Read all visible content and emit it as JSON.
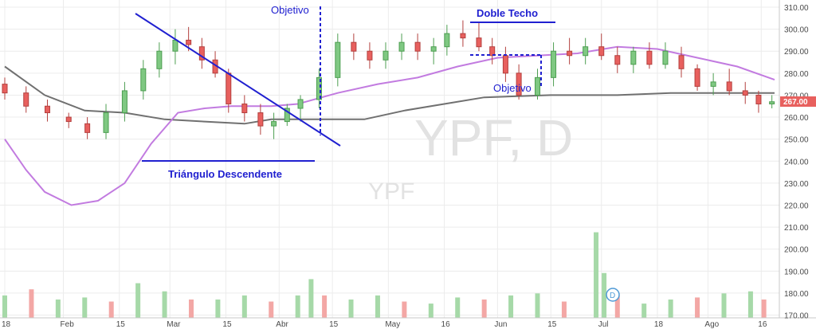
{
  "watermark": {
    "ticker": "YPF, D",
    "name": "YPF"
  },
  "price_label": "267.00",
  "event_marker": "D",
  "chart_data": {
    "type": "candlestick",
    "y_range": [
      165,
      313
    ],
    "y_ticks": [
      "310.00",
      "300.00",
      "290.00",
      "280.00",
      "270.00",
      "260.00",
      "250.00",
      "240.00",
      "230.00",
      "220.00",
      "210.00",
      "200.00",
      "190.00",
      "180.00",
      "170.00"
    ],
    "y_tick_values": [
      310,
      300,
      290,
      280,
      270,
      260,
      250,
      240,
      230,
      220,
      210,
      200,
      190,
      180,
      170
    ],
    "x_ticks": [
      "18",
      "Feb",
      "15",
      "Mar",
      "15",
      "Abr",
      "15",
      "May",
      "16",
      "Jun",
      "15",
      "Jul",
      "18",
      "Ago",
      "16"
    ],
    "x_tick_positions": [
      0,
      22,
      43,
      62,
      83,
      103,
      123,
      144,
      165,
      185,
      205,
      224,
      245,
      264,
      284
    ],
    "last_price": 267,
    "n_sessions": 289,
    "colors": {
      "up": "#7fc882",
      "down": "#e8605e",
      "sma_long": "#707070",
      "sma_short": "#c27be0",
      "annotation": "#2020d0",
      "price_tag": "#e8605e",
      "grid": "#ececec"
    },
    "candles": [
      [
        0,
        275,
        278,
        268,
        271
      ],
      [
        8,
        271,
        274,
        262,
        265
      ],
      [
        16,
        265,
        268,
        258,
        262
      ],
      [
        24,
        260,
        262,
        255,
        258
      ],
      [
        31,
        257,
        260,
        250,
        253
      ],
      [
        38,
        253,
        266,
        250,
        262
      ],
      [
        45,
        262,
        276,
        258,
        272
      ],
      [
        52,
        272,
        286,
        268,
        282
      ],
      [
        58,
        282,
        294,
        278,
        290
      ],
      [
        64,
        290,
        300,
        284,
        295
      ],
      [
        69,
        295,
        301,
        290,
        293
      ],
      [
        74,
        292,
        296,
        282,
        286
      ],
      [
        79,
        286,
        290,
        278,
        280
      ],
      [
        84,
        280,
        282,
        262,
        266
      ],
      [
        90,
        266,
        270,
        258,
        262
      ],
      [
        96,
        262,
        266,
        252,
        256
      ],
      [
        101,
        256,
        262,
        250,
        258
      ],
      [
        106,
        258,
        266,
        256,
        264
      ],
      [
        111,
        264,
        270,
        258,
        268
      ],
      [
        118,
        268,
        282,
        264,
        278
      ],
      [
        125,
        278,
        298,
        274,
        294
      ],
      [
        131,
        294,
        298,
        286,
        290
      ],
      [
        137,
        290,
        294,
        282,
        286
      ],
      [
        143,
        286,
        294,
        282,
        290
      ],
      [
        149,
        290,
        298,
        286,
        294
      ],
      [
        155,
        294,
        298,
        286,
        290
      ],
      [
        161,
        290,
        296,
        284,
        292
      ],
      [
        166,
        292,
        302,
        288,
        298
      ],
      [
        172,
        298,
        304,
        292,
        296
      ],
      [
        178,
        296,
        303,
        290,
        292
      ],
      [
        183,
        292,
        296,
        284,
        288
      ],
      [
        188,
        288,
        292,
        276,
        280
      ],
      [
        193,
        280,
        284,
        268,
        270
      ],
      [
        200,
        270,
        282,
        268,
        278
      ],
      [
        206,
        278,
        294,
        274,
        290
      ],
      [
        212,
        290,
        296,
        284,
        288
      ],
      [
        218,
        288,
        296,
        284,
        292
      ],
      [
        224,
        292,
        298,
        286,
        288
      ],
      [
        230,
        288,
        292,
        280,
        284
      ],
      [
        236,
        284,
        292,
        280,
        290
      ],
      [
        242,
        290,
        294,
        282,
        284
      ],
      [
        248,
        284,
        294,
        282,
        290
      ],
      [
        254,
        288,
        292,
        278,
        282
      ],
      [
        260,
        282,
        284,
        272,
        274
      ],
      [
        266,
        274,
        280,
        270,
        276
      ],
      [
        272,
        276,
        282,
        270,
        272
      ],
      [
        278,
        272,
        276,
        266,
        270
      ],
      [
        283,
        270,
        272,
        262,
        266
      ],
      [
        288,
        266,
        270,
        264,
        267
      ]
    ],
    "volume_range": [
      0,
      215
    ],
    "volume": [
      [
        0,
        55
      ],
      [
        10,
        70
      ],
      [
        20,
        45
      ],
      [
        30,
        50
      ],
      [
        40,
        40
      ],
      [
        50,
        85
      ],
      [
        60,
        65
      ],
      [
        70,
        45
      ],
      [
        80,
        45
      ],
      [
        90,
        55
      ],
      [
        100,
        40
      ],
      [
        110,
        55
      ],
      [
        115,
        95
      ],
      [
        120,
        55
      ],
      [
        130,
        45
      ],
      [
        140,
        55
      ],
      [
        150,
        40
      ],
      [
        160,
        35
      ],
      [
        170,
        50
      ],
      [
        180,
        45
      ],
      [
        190,
        55
      ],
      [
        200,
        60
      ],
      [
        210,
        40
      ],
      [
        222,
        210
      ],
      [
        225,
        110
      ],
      [
        230,
        55
      ],
      [
        240,
        35
      ],
      [
        250,
        45
      ],
      [
        260,
        50
      ],
      [
        270,
        60
      ],
      [
        280,
        65
      ],
      [
        285,
        45
      ]
    ],
    "sma_long": [
      [
        0,
        283
      ],
      [
        15,
        270
      ],
      [
        30,
        263
      ],
      [
        45,
        262
      ],
      [
        60,
        259
      ],
      [
        75,
        258
      ],
      [
        90,
        257
      ],
      [
        100,
        259
      ],
      [
        115,
        259
      ],
      [
        135,
        259
      ],
      [
        150,
        263
      ],
      [
        165,
        266
      ],
      [
        180,
        269
      ],
      [
        205,
        270
      ],
      [
        230,
        270
      ],
      [
        250,
        271
      ],
      [
        265,
        271
      ],
      [
        289,
        271
      ]
    ],
    "sma_short": [
      [
        0,
        250
      ],
      [
        8,
        236
      ],
      [
        15,
        226
      ],
      [
        25,
        220
      ],
      [
        35,
        222
      ],
      [
        45,
        230
      ],
      [
        55,
        248
      ],
      [
        65,
        262
      ],
      [
        75,
        264
      ],
      [
        85,
        265
      ],
      [
        100,
        265
      ],
      [
        110,
        266
      ],
      [
        125,
        271
      ],
      [
        140,
        275
      ],
      [
        155,
        278
      ],
      [
        170,
        283
      ],
      [
        185,
        287
      ],
      [
        200,
        288
      ],
      [
        215,
        289
      ],
      [
        230,
        292
      ],
      [
        245,
        291
      ],
      [
        260,
        287
      ],
      [
        275,
        283
      ],
      [
        289,
        277
      ]
    ],
    "annotations": {
      "objective_1": "Objetivo",
      "double_top": "Doble Techo",
      "objective_2": "Objetivo",
      "triangle": "Triángulo Descendente"
    }
  }
}
